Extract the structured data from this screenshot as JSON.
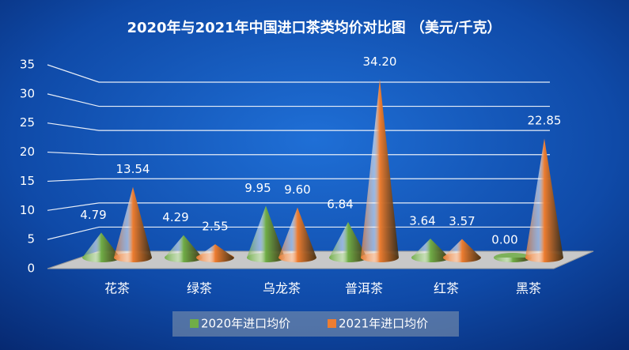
{
  "chart_data": {
    "type": "cone",
    "title": "2020年与2021年中国进口茶类均价对比图 （美元/千克）",
    "categories": [
      "花茶",
      "绿茶",
      "乌龙茶",
      "普洱茶",
      "红茶",
      "黑茶"
    ],
    "series": [
      {
        "name": "2020年进口均价",
        "color": "#70ad47",
        "values": [
          4.79,
          4.29,
          9.95,
          6.84,
          3.64,
          0
        ],
        "value_labels": [
          "4.79",
          "4.29",
          "9.95",
          "6.84",
          "3.64",
          "0.00"
        ]
      },
      {
        "name": "2021年进口均价",
        "color": "#ed7d31",
        "values": [
          13.54,
          2.55,
          9.6,
          34.2,
          3.57,
          22.85
        ],
        "value_labels": [
          "13.54",
          "2.55",
          "9.60",
          "34.20",
          "3.57",
          "22.85"
        ]
      }
    ],
    "ylim": [
      0,
      35
    ],
    "yticks": [
      0,
      5,
      10,
      15,
      20,
      25,
      30,
      35
    ],
    "grid": true,
    "legend": "bottom"
  }
}
